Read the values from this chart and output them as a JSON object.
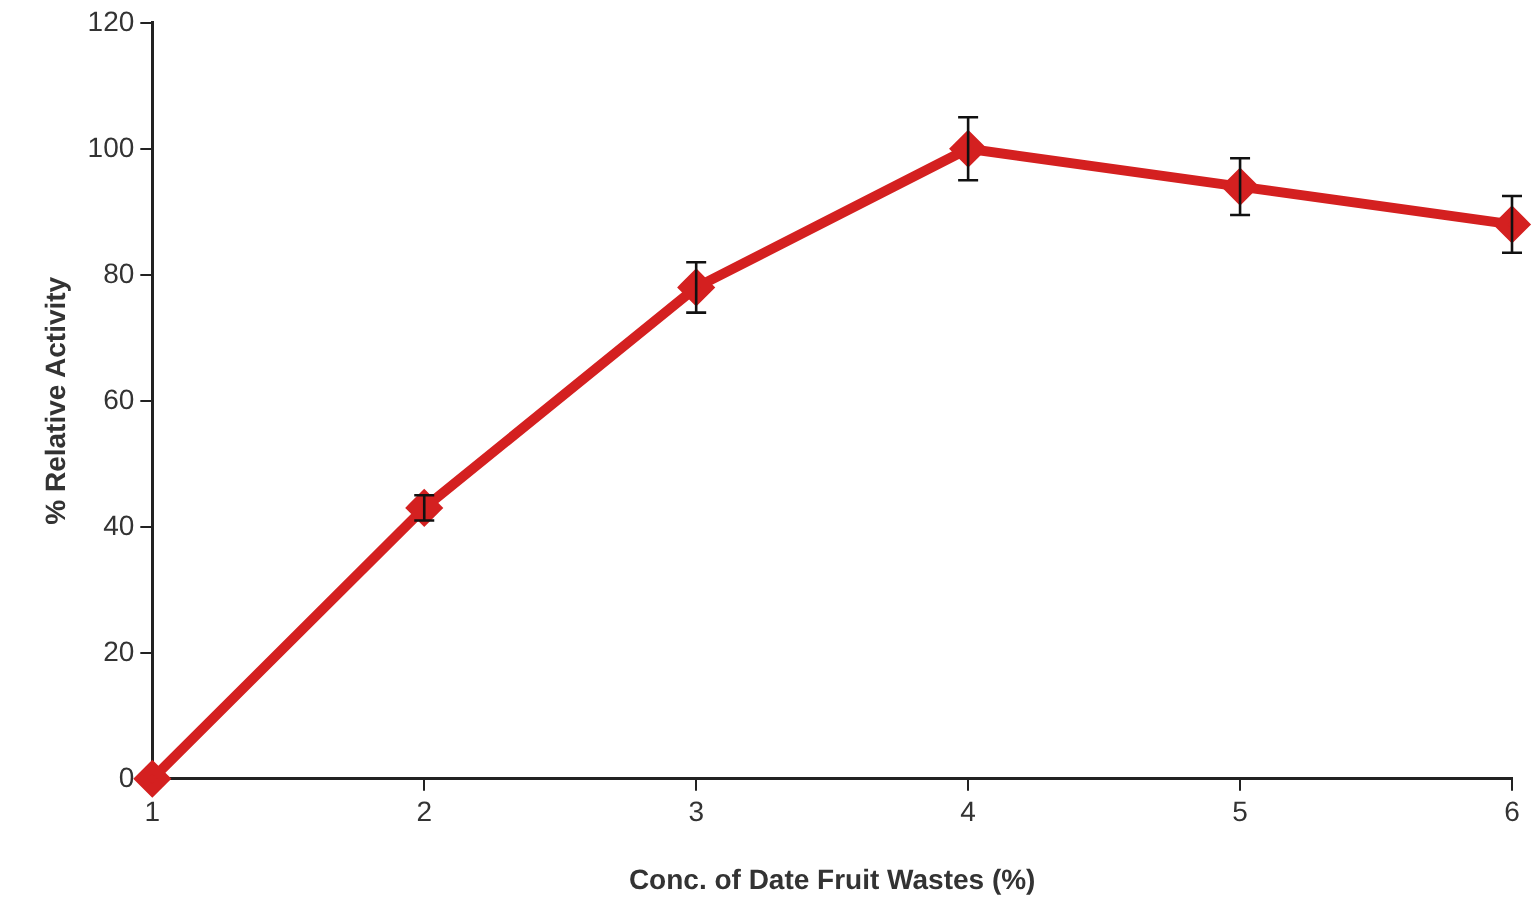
{
  "chart_data": {
    "type": "line",
    "xlabel": "Conc. of Date Fruit Wastes (%)",
    "ylabel": "% Relative Activity",
    "x": [
      1,
      2,
      3,
      4,
      5,
      6
    ],
    "series": [
      {
        "color": "#d42020",
        "values": [
          0,
          43,
          78,
          100,
          94,
          88
        ],
        "errors": [
          null,
          2,
          4,
          5,
          4.5,
          4.5
        ]
      }
    ],
    "xlim": [
      1,
      6
    ],
    "xticks": [
      1,
      2,
      3,
      4,
      5,
      6
    ],
    "ylim": [
      0,
      120
    ],
    "yticks": [
      0,
      20,
      40,
      60,
      80,
      100,
      120
    ],
    "grid": false,
    "legend": false,
    "marker": "diamond",
    "line_style": "solid"
  }
}
